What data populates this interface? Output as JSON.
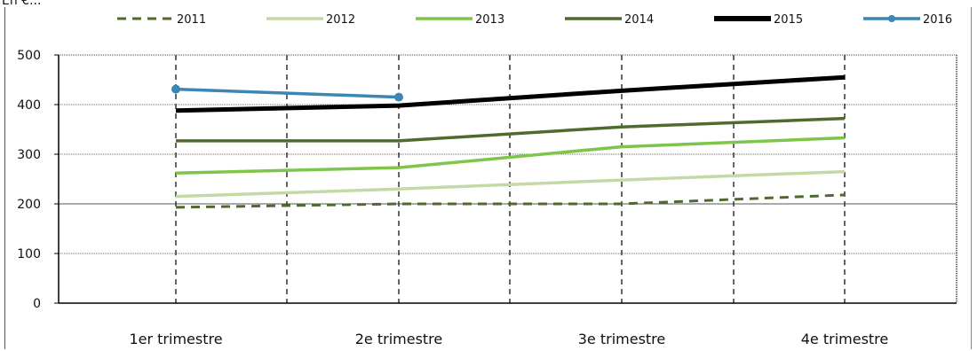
{
  "unit_label": "En €...",
  "chart_data": {
    "type": "line",
    "categories": [
      "1er trimestre",
      "2e trimestre",
      "3e trimestre",
      "4e trimestre"
    ],
    "ylim": [
      0,
      500
    ],
    "yticks": [
      "0",
      "100",
      "200",
      "300",
      "400",
      "500"
    ],
    "grid": true,
    "legend_position": "top",
    "series": [
      {
        "name": "2011",
        "values": [
          193,
          200,
          200,
          218
        ],
        "color": "#4f6a2e",
        "style": "dashed"
      },
      {
        "name": "2012",
        "values": [
          215,
          230,
          248,
          265
        ],
        "color": "#c4d9a6",
        "style": "solid"
      },
      {
        "name": "2013",
        "values": [
          262,
          273,
          315,
          333
        ],
        "color": "#7dc64a",
        "style": "solid"
      },
      {
        "name": "2014",
        "values": [
          327,
          327,
          355,
          372
        ],
        "color": "#4e6a2c",
        "style": "solid"
      },
      {
        "name": "2015",
        "values": [
          388,
          398,
          428,
          455
        ],
        "color": "#000000",
        "style": "bold"
      },
      {
        "name": "2016",
        "values": [
          431,
          415,
          null,
          null
        ],
        "color": "#3a86b4",
        "style": "marker"
      }
    ]
  }
}
